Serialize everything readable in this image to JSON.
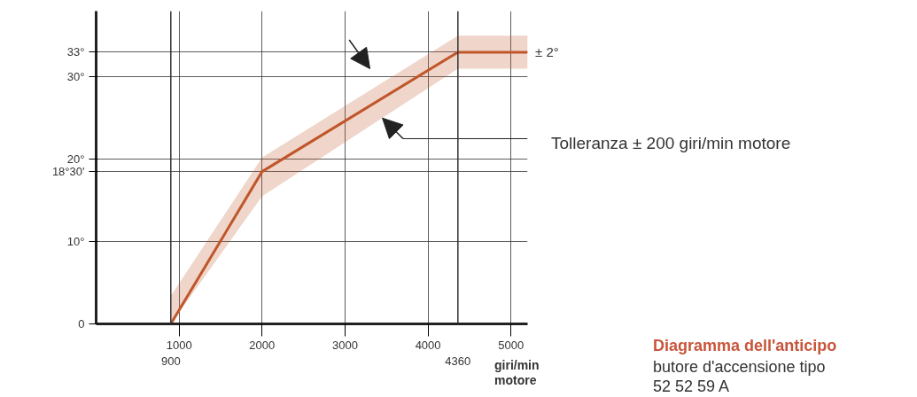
{
  "chart_data": {
    "type": "line",
    "title": "Diagramma dell'anticipo",
    "xlabel": "giri/min motore",
    "x": [
      900,
      2000,
      4360,
      5200
    ],
    "series": [
      {
        "color": "#c0562a",
        "values": [
          0,
          18.5,
          33,
          33
        ],
        "lower": [
          0,
          15.5,
          31,
          31
        ],
        "upper": [
          3.4,
          20.2,
          35,
          35
        ]
      }
    ],
    "xlim": [
      0,
      5200
    ],
    "ylim": [
      0,
      38
    ],
    "xticks": [
      1000,
      2000,
      3000,
      4000,
      5000
    ],
    "ref_lines": [
      {
        "axis": "x",
        "value": 900,
        "label": "900"
      },
      {
        "axis": "x",
        "value": 4360,
        "label": "4360"
      }
    ],
    "yticks": [
      {
        "value": 0,
        "label": "0"
      },
      {
        "value": 10,
        "label": "10°"
      },
      {
        "value": 18.5,
        "label": "18°30'"
      },
      {
        "value": 20,
        "label": "20°"
      },
      {
        "value": 30,
        "label": "30°"
      },
      {
        "value": 33,
        "label": "33°"
      }
    ],
    "grid": true,
    "marker": "none",
    "line_style": "solid",
    "annotations": [
      {
        "text": "± 2°",
        "x": 5200,
        "y": 33
      },
      "Tolleranza ± 200 giri/min motore",
      "butore d'accensione tipo",
      "52 52 59 A"
    ]
  }
}
